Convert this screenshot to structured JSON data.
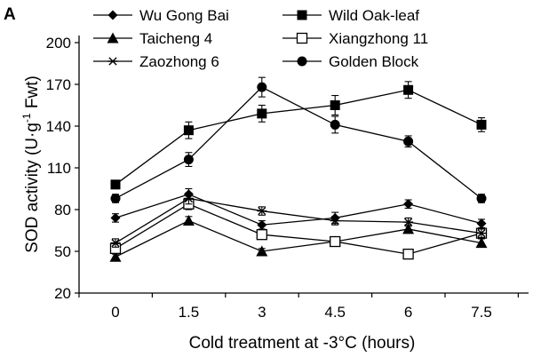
{
  "panel_label": "A",
  "chart_data": {
    "type": "line",
    "title": "",
    "xlabel": "Cold treatment at -3°C (hours)",
    "ylabel_main": "SOD activity (U·g",
    "ylabel_sup": "-1",
    "ylabel_end": " Fwt)",
    "x": [
      0,
      1.5,
      3,
      4.5,
      6,
      7.5
    ],
    "x_tick_labels": [
      "0",
      "1.5",
      "3",
      "4.5",
      "6",
      "7.5"
    ],
    "ylim": [
      20,
      200
    ],
    "y_ticks": [
      20,
      50,
      80,
      110,
      140,
      170,
      200
    ],
    "y_tick_labels": [
      "20",
      "50",
      "80",
      "110",
      "140",
      "170",
      "200"
    ],
    "grid": false,
    "legend_position": "top",
    "series": [
      {
        "name": "Wu Gong Bai",
        "marker": "diamond",
        "values": [
          74,
          91,
          69,
          74,
          84,
          70
        ],
        "errors": [
          3,
          4,
          3,
          4,
          3,
          3
        ]
      },
      {
        "name": "Wild Oak-leaf",
        "marker": "square",
        "values": [
          98,
          137,
          149,
          155,
          166,
          141
        ],
        "errors": [
          3,
          6,
          6,
          7,
          6,
          5
        ]
      },
      {
        "name": "Taicheng 4",
        "marker": "triangle",
        "values": [
          46,
          72,
          50,
          57,
          66,
          56
        ],
        "errors": [
          2,
          3,
          2,
          3,
          3,
          3
        ]
      },
      {
        "name": "Xiangzhong 11",
        "marker": "open-square",
        "values": [
          52,
          84,
          62,
          57,
          48,
          63
        ],
        "errors": [
          3,
          4,
          3,
          3,
          2,
          3
        ]
      },
      {
        "name": "Zaozhong 6",
        "marker": "asterisk",
        "values": [
          56,
          88,
          79,
          72,
          71,
          63
        ],
        "errors": [
          3,
          4,
          3,
          3,
          3,
          3
        ]
      },
      {
        "name": "Golden Block",
        "marker": "circle",
        "values": [
          88,
          116,
          168,
          141,
          129,
          88
        ],
        "errors": [
          3,
          5,
          7,
          6,
          4,
          3
        ]
      }
    ]
  }
}
